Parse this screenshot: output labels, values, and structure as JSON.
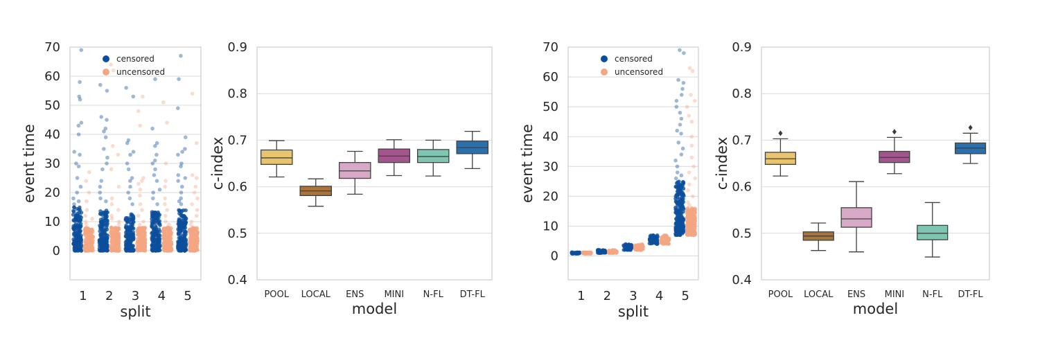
{
  "chart_data": [
    {
      "type": "scatter",
      "subtype": "strip",
      "xlabel": "split",
      "ylabel": "event time",
      "categories": [
        "1",
        "2",
        "3",
        "4",
        "5"
      ],
      "ylim": [
        -10,
        70
      ],
      "yticks": [
        0,
        10,
        20,
        30,
        40,
        50,
        60,
        70
      ],
      "grid": true,
      "legend": {
        "placement": "top-center",
        "entries": [
          "censored",
          "uncensored"
        ]
      },
      "series": [
        {
          "name": "censored",
          "color": "#0b4f9c",
          "dense_max": [
            15,
            14,
            13,
            14,
            14
          ],
          "outliers": [
            [
              69,
              58,
              53,
              52,
              44,
              43,
              40,
              34,
              33,
              30,
              29,
              25,
              22,
              20,
              18,
              17,
              16
            ],
            [
              57,
              55,
              46,
              45,
              42,
              41,
              39,
              35,
              32,
              30,
              28,
              24,
              22,
              20,
              18,
              17
            ],
            [
              56,
              53,
              38,
              37,
              34,
              33,
              30,
              28,
              25,
              24,
              22,
              20,
              18,
              16
            ],
            [
              59,
              42,
              37,
              36,
              33,
              31,
              30,
              28,
              26,
              24,
              21,
              20,
              18,
              16
            ],
            [
              67,
              59,
              49,
              39,
              35,
              34,
              33,
              30,
              29,
              26,
              25,
              24,
              22,
              20,
              18,
              17,
              16
            ]
          ]
        },
        {
          "name": "uncensored",
          "color": "#f4a582",
          "dense_max": [
            8,
            8,
            8,
            8,
            8
          ],
          "outliers": [
            [
              27,
              24,
              20,
              17,
              14,
              12,
              11,
              10,
              9
            ],
            [
              64,
              62,
              36,
              33,
              28,
              22,
              18,
              16,
              14,
              12,
              11,
              10,
              9
            ],
            [
              53,
              48,
              43,
              25,
              24,
              23,
              21,
              19,
              16,
              14,
              12,
              10,
              9
            ],
            [
              51,
              44,
              30,
              24,
              22,
              18,
              16,
              14,
              12,
              10,
              9
            ],
            [
              54,
              37,
              26,
              25,
              22,
              20,
              18,
              16,
              14,
              12,
              10,
              9
            ]
          ]
        }
      ]
    },
    {
      "type": "box",
      "xlabel": "model",
      "ylabel": "c-index",
      "categories": [
        "POOL",
        "LOCAL",
        "ENS",
        "MINI",
        "N-FL",
        "DT-FL"
      ],
      "ylim": [
        0.4,
        0.9
      ],
      "yticks": [
        "0.4",
        "0.5",
        "0.6",
        "0.7",
        "0.8",
        "0.9"
      ],
      "grid": true,
      "colors": [
        "#e8c46f",
        "#a9733c",
        "#d8a9c7",
        "#a3558d",
        "#7fc6b2",
        "#2b6fab"
      ],
      "boxes": [
        {
          "whislo": 0.621,
          "q1": 0.648,
          "med": 0.662,
          "q3": 0.679,
          "whishi": 0.699,
          "fliers": []
        },
        {
          "whislo": 0.558,
          "q1": 0.581,
          "med": 0.591,
          "q3": 0.601,
          "whishi": 0.617,
          "fliers": []
        },
        {
          "whislo": 0.584,
          "q1": 0.618,
          "med": 0.634,
          "q3": 0.652,
          "whishi": 0.676,
          "fliers": []
        },
        {
          "whislo": 0.624,
          "q1": 0.652,
          "med": 0.666,
          "q3": 0.681,
          "whishi": 0.701,
          "fliers": []
        },
        {
          "whislo": 0.623,
          "q1": 0.652,
          "med": 0.665,
          "q3": 0.68,
          "whishi": 0.7,
          "fliers": []
        },
        {
          "whislo": 0.639,
          "q1": 0.671,
          "med": 0.684,
          "q3": 0.698,
          "whishi": 0.719,
          "fliers": []
        }
      ]
    },
    {
      "type": "scatter",
      "subtype": "strip",
      "xlabel": "split",
      "ylabel": "event time",
      "categories": [
        "1",
        "2",
        "3",
        "4",
        "5"
      ],
      "ylim": [
        -8,
        70
      ],
      "yticks": [
        0,
        10,
        20,
        30,
        40,
        50,
        60,
        70
      ],
      "grid": true,
      "legend": {
        "placement": "top-center",
        "entries": [
          "censored",
          "uncensored"
        ]
      },
      "series": [
        {
          "name": "censored",
          "color": "#0b4f9c",
          "ranges": [
            [
              0.8,
              1.2
            ],
            [
              1,
              2
            ],
            [
              2,
              4
            ],
            [
              4,
              7
            ],
            [
              7,
              25
            ]
          ],
          "outliers": [
            [],
            [],
            [],
            [],
            [
              69,
              68,
              59,
              58,
              56,
              54,
              52,
              50,
              48,
              46,
              44,
              42,
              41,
              38,
              36,
              34,
              32,
              30,
              28,
              27,
              26
            ]
          ]
        },
        {
          "name": "uncensored",
          "color": "#f4a582",
          "ranges": [
            [
              0.8,
              1.2
            ],
            [
              1,
              2
            ],
            [
              2,
              4
            ],
            [
              4,
              7
            ],
            [
              7,
              16
            ]
          ],
          "outliers": [
            [],
            [],
            [
              3.8
            ],
            [],
            [
              63,
              62,
              54,
              52,
              50,
              47,
              45,
              40,
              37,
              33,
              30,
              28,
              26,
              24,
              22,
              20,
              18,
              17
            ]
          ]
        }
      ]
    },
    {
      "type": "box",
      "xlabel": "model",
      "ylabel": "c-index",
      "categories": [
        "POOL",
        "LOCAL",
        "ENS",
        "MINI",
        "N-FL",
        "DT-FL"
      ],
      "ylim": [
        0.4,
        0.9
      ],
      "yticks": [
        "0.4",
        "0.5",
        "0.6",
        "0.7",
        "0.8",
        "0.9"
      ],
      "grid": true,
      "colors": [
        "#e8c46f",
        "#a9733c",
        "#d8a9c7",
        "#a3558d",
        "#7fc6b2",
        "#2b6fab"
      ],
      "boxes": [
        {
          "whislo": 0.623,
          "q1": 0.648,
          "med": 0.66,
          "q3": 0.674,
          "whishi": 0.703,
          "fliers": [
            0.715
          ]
        },
        {
          "whislo": 0.463,
          "q1": 0.485,
          "med": 0.494,
          "q3": 0.503,
          "whishi": 0.522,
          "fliers": []
        },
        {
          "whislo": 0.46,
          "q1": 0.513,
          "med": 0.531,
          "q3": 0.555,
          "whishi": 0.611,
          "fliers": []
        },
        {
          "whislo": 0.628,
          "q1": 0.652,
          "med": 0.663,
          "q3": 0.676,
          "whishi": 0.706,
          "fliers": [
            0.718
          ]
        },
        {
          "whislo": 0.449,
          "q1": 0.486,
          "med": 0.5,
          "q3": 0.517,
          "whishi": 0.566,
          "fliers": []
        },
        {
          "whislo": 0.65,
          "q1": 0.671,
          "med": 0.683,
          "q3": 0.694,
          "whishi": 0.715,
          "fliers": [
            0.727
          ]
        }
      ]
    }
  ]
}
